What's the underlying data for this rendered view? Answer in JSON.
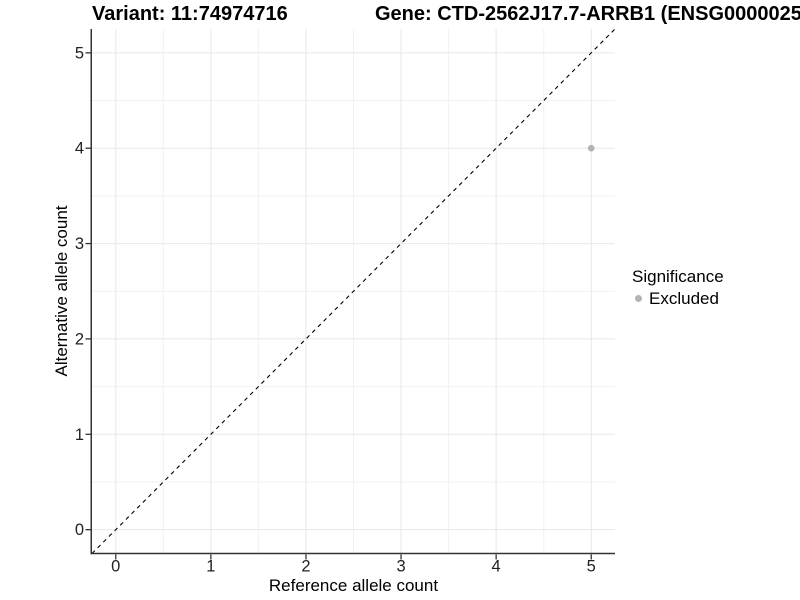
{
  "figure": {
    "titles": {
      "variant": "Variant: 11:74974716",
      "gene": "Gene: CTD-2562J17.7-ARRB1 (ENSG0000025"
    }
  },
  "chart_data": {
    "type": "scatter",
    "xlabel": "Reference allele count",
    "ylabel": "Alternative allele count",
    "xlim": [
      -0.25,
      5.25
    ],
    "ylim": [
      -0.25,
      5.25
    ],
    "xticks": [
      0,
      1,
      2,
      3,
      4,
      5
    ],
    "yticks": [
      0,
      1,
      2,
      3,
      4,
      5
    ],
    "minor_xticks": [
      0.5,
      1.5,
      2.5,
      3.5,
      4.5
    ],
    "minor_yticks": [
      0.5,
      1.5,
      2.5,
      3.5,
      4.5
    ],
    "grid": {
      "major": true,
      "minor": true
    },
    "series": [
      {
        "name": "Excluded",
        "color": "#b3b3b3",
        "points": [
          {
            "x": 5,
            "y": 4
          }
        ]
      }
    ],
    "identity_line": {
      "style": "dashed",
      "color": "#000000",
      "from": [
        -0.25,
        -0.25
      ],
      "to": [
        5.25,
        5.25
      ]
    },
    "legend": {
      "title": "Significance",
      "position": "right",
      "items": [
        {
          "label": "Excluded",
          "color": "#b3b3b3"
        }
      ]
    },
    "colors": {
      "axis_line": "#333333",
      "tick_mark": "#333333",
      "tick_label": "#222222",
      "grid_major": "#e8e8e8",
      "grid_minor": "#f2f2f2",
      "background": "#ffffff"
    }
  }
}
